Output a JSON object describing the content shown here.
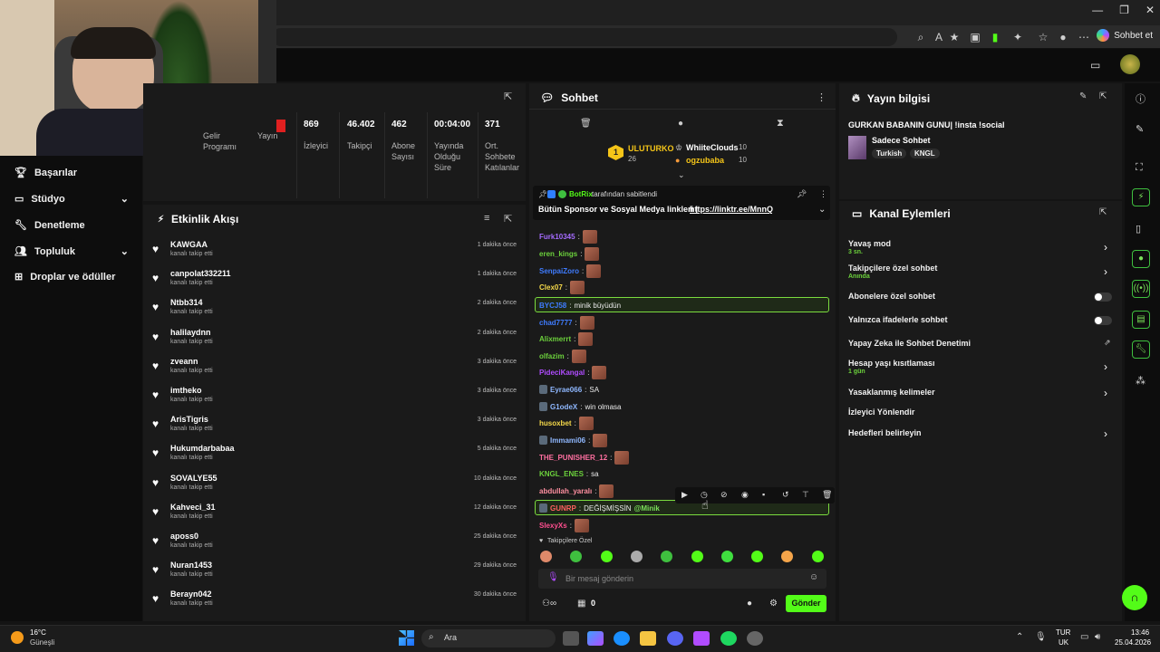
{
  "browser": {
    "sohbet_et": "Sohbet et",
    "win_minimize": "—",
    "win_restore": "❐",
    "win_close": "✕"
  },
  "left_nav": {
    "items": [
      {
        "label": "Başarılar",
        "icon": "trophy-icon"
      },
      {
        "label": "Stüdyo",
        "icon": "studio-icon",
        "chevron": true
      },
      {
        "label": "Denetleme",
        "icon": "wrench-icon"
      },
      {
        "label": "Topluluk",
        "icon": "people-icon",
        "chevron": true
      },
      {
        "label": "Droplar ve ödüller",
        "icon": "gift-icon"
      }
    ]
  },
  "stats": [
    {
      "value": "",
      "label": "Gelir Programı"
    },
    {
      "value": "",
      "label": "Yayın"
    },
    {
      "value": "869",
      "label": "İzleyici"
    },
    {
      "value": "46.402",
      "label": "Takipçi"
    },
    {
      "value": "462",
      "label": "Abone Sayısı"
    },
    {
      "value": "00:04:00",
      "label": "Yayında Olduğu Süre"
    },
    {
      "value": "371",
      "label": "Ort. Sohbete Katılanlar"
    }
  ],
  "activity": {
    "title": "Etkinlik Akışı",
    "rows": [
      {
        "name": "KAWGAA",
        "sub": "kanalı takip etti",
        "time": "1 dakika önce"
      },
      {
        "name": "canpolat332211",
        "sub": "kanalı takip etti",
        "time": "1 dakika önce"
      },
      {
        "name": "Ntbb314",
        "sub": "kanalı takip etti",
        "time": "2 dakika önce"
      },
      {
        "name": "halilaydnn",
        "sub": "kanalı takip etti",
        "time": "2 dakika önce"
      },
      {
        "name": "zveann",
        "sub": "kanalı takip etti",
        "time": "3 dakika önce"
      },
      {
        "name": "imtheko",
        "sub": "kanalı takip etti",
        "time": "3 dakika önce"
      },
      {
        "name": "ArisTigris",
        "sub": "kanalı takip etti",
        "time": "3 dakika önce"
      },
      {
        "name": "Hukumdarbabaa",
        "sub": "kanalı takip etti",
        "time": "5 dakika önce"
      },
      {
        "name": "SOVALYE55",
        "sub": "kanalı takip etti",
        "time": "10 dakika önce"
      },
      {
        "name": "Kahveci_31",
        "sub": "kanalı takip etti",
        "time": "12 dakika önce"
      },
      {
        "name": "aposs0",
        "sub": "kanalı takip etti",
        "time": "25 dakika önce"
      },
      {
        "name": "Nuran1453",
        "sub": "kanalı takip etti",
        "time": "29 dakika önce"
      },
      {
        "name": "Berayn042",
        "sub": "kanalı takip etti",
        "time": "30 dakika önce"
      }
    ]
  },
  "chat": {
    "title": "Sohbet",
    "leaderboard": {
      "first": {
        "name": "ULUTURKO",
        "rank": "1",
        "count": "26"
      },
      "others": [
        {
          "name": "WhiiteClouds",
          "count": "10"
        },
        {
          "name": "ogzubaba",
          "count": "10"
        }
      ]
    },
    "pinned": {
      "by_user": "BotRix",
      "by_text": "tarafından sabitlendi",
      "message": "Bütün Sponsor ve Sosyal Medya linkleri |",
      "link": "https://linktr.ee/MnnQ"
    },
    "messages": [
      {
        "user": "Furk10345",
        "color": "#a56bff",
        "text": "",
        "emote": true
      },
      {
        "user": "eren_kings",
        "color": "#6cd13c",
        "text": "",
        "emote": true
      },
      {
        "user": "SenpaiZoro",
        "color": "#3f7cff",
        "text": "",
        "emote": true
      },
      {
        "user": "Clex07",
        "color": "#f5d94a",
        "text": "",
        "emote": true
      },
      {
        "user": "BYCJ58",
        "color": "#3f7cff",
        "text": "minik büyüdün",
        "emote": false,
        "highlight": true
      },
      {
        "user": "chad7777",
        "color": "#3f7cff",
        "text": "",
        "emote": true
      },
      {
        "user": "Alixmerrt",
        "color": "#6cd13c",
        "text": "",
        "emote": true
      },
      {
        "user": "olfazim",
        "color": "#6cd13c",
        "text": "",
        "emote": true
      },
      {
        "user": "PideciKangal",
        "color": "#b04cff",
        "text": "",
        "emote": true
      },
      {
        "user": "Eyrae066",
        "color": "#8fb8ff",
        "text": "SA",
        "emote": false,
        "badge": true
      },
      {
        "user": "G1odeX",
        "color": "#8fb8ff",
        "text": "win olmasa",
        "emote": false,
        "badge": true
      },
      {
        "user": "husoxbet",
        "color": "#f5d94a",
        "text": "",
        "emote": true
      },
      {
        "user": "Immami06",
        "color": "#8fb8ff",
        "text": "",
        "emote": true,
        "badge": true
      },
      {
        "user": "THE_PUNISHER_12",
        "color": "#ff6fa0",
        "text": "",
        "emote": true
      },
      {
        "user": "KNGL_ENES",
        "color": "#6cd13c",
        "text": "sa",
        "emote": false
      },
      {
        "user": "abdullah_yaralı",
        "color": "#ff8fa0",
        "text": "",
        "emote": true
      },
      {
        "user": "GUNRP",
        "color": "#ff6060",
        "text": "DEĞİŞMİŞSİN",
        "mention": "@Minik",
        "emote": false,
        "highlight": true,
        "badge": true
      },
      {
        "user": "SlexyXs",
        "color": "#ff4f8f",
        "text": "",
        "emote": true
      }
    ],
    "followers_only": "Takipçilere Özel",
    "input_placeholder": "Bir mesaj gönderin",
    "viewer_count": "0",
    "send_label": "Gönder"
  },
  "stream_info": {
    "title": "Yayın bilgisi",
    "stream_title": "GURKAN BABANIN GUNU| !insta !social",
    "category": "Sadece Sohbet",
    "tags": [
      "Turkish",
      "KNGL"
    ]
  },
  "channel_actions": {
    "title": "Kanal Eylemleri",
    "items": [
      {
        "label": "Yavaş mod",
        "sub": "3 sn.",
        "control": "chevron"
      },
      {
        "label": "Takipçilere özel sohbet",
        "sub": "Anında",
        "control": "chevron"
      },
      {
        "label": "Abonelere özel sohbet",
        "sub": "",
        "control": "toggle"
      },
      {
        "label": "Yalnızca ifadelerle sohbet",
        "sub": "",
        "control": "toggle"
      },
      {
        "label": "Yapay Zeka ile Sohbet Denetimi",
        "sub": "",
        "control": "external"
      },
      {
        "label": "Hesap yaşı kısıtlaması",
        "sub": "1 gün",
        "control": "chevron"
      },
      {
        "label": "Yasaklanmış kelimeler",
        "sub": "",
        "control": "chevron"
      },
      {
        "label": "İzleyici Yönlendir",
        "sub": "",
        "control": "none"
      },
      {
        "label": "Hedefleri belirleyin",
        "sub": "",
        "control": "chevron"
      }
    ]
  },
  "taskbar": {
    "weather_temp": "16°C",
    "weather_desc": "Güneşli",
    "search_label": "Ara",
    "lang": "TUR",
    "region": "UK",
    "time": "13:46",
    "date": "25.04.2026"
  },
  "colors": {
    "accent": "#53fc18",
    "panel": "#1a1a1a",
    "bg": "#0d0d0d"
  }
}
